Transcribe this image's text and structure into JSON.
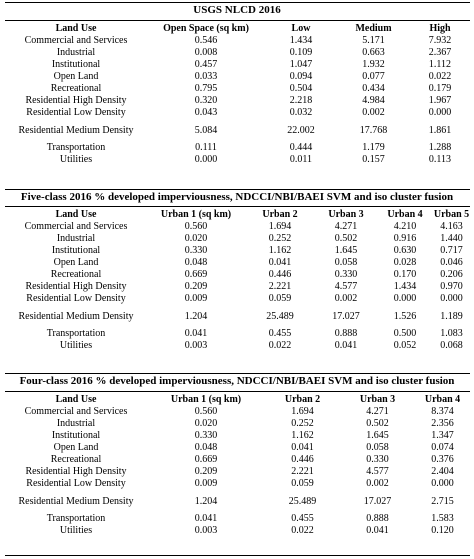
{
  "sections": [
    {
      "title": "USGS NLCD 2016",
      "columns": [
        "Land Use",
        "Open Space (sq km)",
        "Low",
        "Medium",
        "High"
      ],
      "rows": [
        [
          "Commercial and Services",
          "0.546",
          "1.434",
          "5.171",
          "7.932"
        ],
        [
          "Industrial",
          "0.008",
          "0.109",
          "0.663",
          "2.367"
        ],
        [
          "Institutional",
          "0.457",
          "1.047",
          "1.932",
          "1.112"
        ],
        [
          "Open Land",
          "0.033",
          "0.094",
          "0.077",
          "0.022"
        ],
        [
          "Recreational",
          "0.795",
          "0.504",
          "0.434",
          "0.179"
        ],
        [
          "Residential High Density",
          "0.320",
          "2.218",
          "4.984",
          "1.967"
        ],
        [
          "Residential Low Density",
          "0.043",
          "0.032",
          "0.002",
          "0.000"
        ],
        [
          "Residential Medium Density",
          "5.084",
          "22.002",
          "17.768",
          "1.861"
        ],
        [
          "Transportation",
          "0.111",
          "0.444",
          "1.179",
          "1.288"
        ],
        [
          "Utilities",
          "0.000",
          "0.011",
          "0.157",
          "0.113"
        ]
      ]
    },
    {
      "title": "Five-class 2016 % developed imperviousness, NDCCI/NBI/BAEI SVM and iso cluster fusion",
      "columns": [
        "Land Use",
        "Urban 1 (sq km)",
        "Urban 2",
        "Urban 3",
        "Urban 4",
        "Urban 5"
      ],
      "rows": [
        [
          "Commercial and Services",
          "0.560",
          "1.694",
          "4.271",
          "4.210",
          "4.163"
        ],
        [
          "Industrial",
          "0.020",
          "0.252",
          "0.502",
          "0.916",
          "1.440"
        ],
        [
          "Institutional",
          "0.330",
          "1.162",
          "1.645",
          "0.630",
          "0.717"
        ],
        [
          "Open Land",
          "0.048",
          "0.041",
          "0.058",
          "0.028",
          "0.046"
        ],
        [
          "Recreational",
          "0.669",
          "0.446",
          "0.330",
          "0.170",
          "0.206"
        ],
        [
          "Residential High Density",
          "0.209",
          "2.221",
          "4.577",
          "1.434",
          "0.970"
        ],
        [
          "Residential Low Density",
          "0.009",
          "0.059",
          "0.002",
          "0.000",
          "0.000"
        ],
        [
          "Residential Medium Density",
          "1.204",
          "25.489",
          "17.027",
          "1.526",
          "1.189"
        ],
        [
          "Transportation",
          "0.041",
          "0.455",
          "0.888",
          "0.500",
          "1.083"
        ],
        [
          "Utilities",
          "0.003",
          "0.022",
          "0.041",
          "0.052",
          "0.068"
        ]
      ]
    },
    {
      "title": "Four-class 2016 % developed imperviousness, NDCCI/NBI/BAEI SVM and iso cluster fusion",
      "columns": [
        "Land Use",
        "Urban 1 (sq km)",
        "Urban 2",
        "Urban 3",
        "Urban 4"
      ],
      "rows": [
        [
          "Commercial and Services",
          "0.560",
          "1.694",
          "4.271",
          "8.374"
        ],
        [
          "Industrial",
          "0.020",
          "0.252",
          "0.502",
          "2.356"
        ],
        [
          "Institutional",
          "0.330",
          "1.162",
          "1.645",
          "1.347"
        ],
        [
          "Open Land",
          "0.048",
          "0.041",
          "0.058",
          "0.074"
        ],
        [
          "Recreational",
          "0.669",
          "0.446",
          "0.330",
          "0.376"
        ],
        [
          "Residential High Density",
          "0.209",
          "2.221",
          "4.577",
          "2.404"
        ],
        [
          "Residential Low Density",
          "0.009",
          "0.059",
          "0.002",
          "0.000"
        ],
        [
          "Residential Medium Density",
          "1.204",
          "25.489",
          "17.027",
          "2.715"
        ],
        [
          "Transportation",
          "0.041",
          "0.455",
          "0.888",
          "1.583"
        ],
        [
          "Utilities",
          "0.003",
          "0.022",
          "0.041",
          "0.120"
        ]
      ]
    }
  ]
}
